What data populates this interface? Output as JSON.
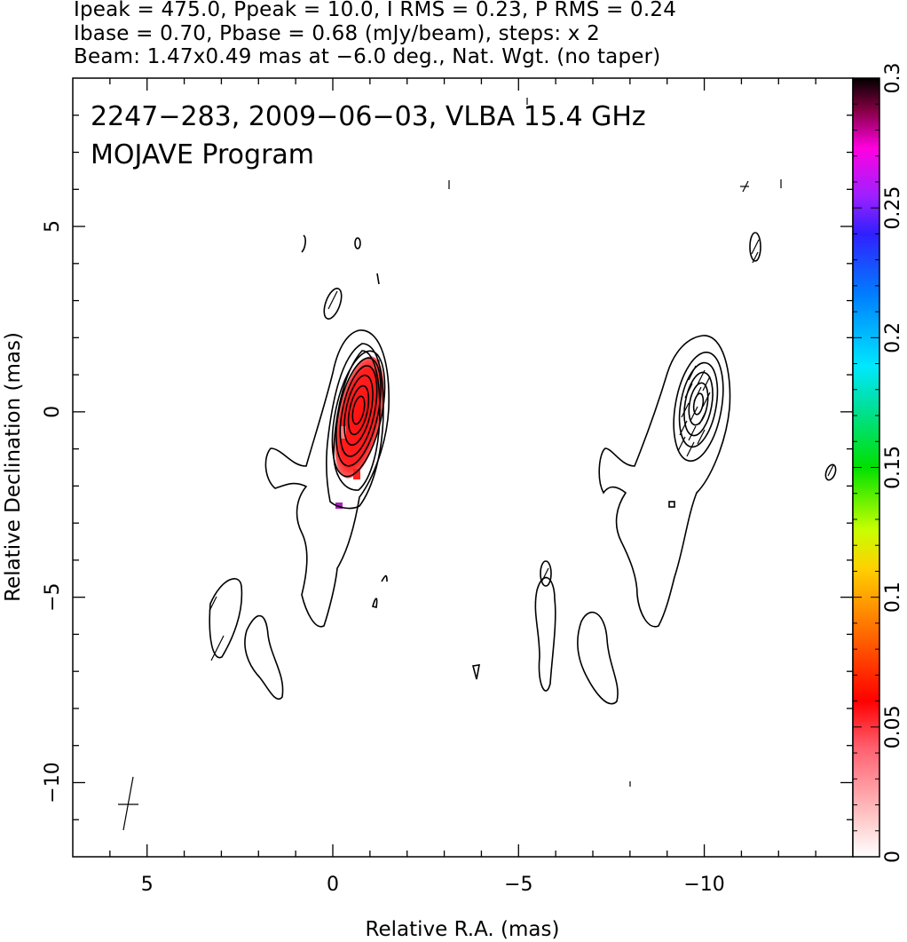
{
  "header": {
    "line1": "Ipeak = 475.0, Ppeak = 10.0, I RMS = 0.23, P RMS = 0.24",
    "line2": "Ibase = 0.70, Pbase = 0.68 (mJy/beam), steps: x 2",
    "line3": "Beam: 1.47x0.49 mas at −6.0 deg., Nat. Wgt. (no taper)"
  },
  "plot_text": {
    "line1": "2247−283, 2009−06−03, VLBA 15.4 GHz",
    "line2": "MOJAVE Program"
  },
  "chart_data": {
    "type": "heatmap",
    "xlabel": "Relative R.A. (mas)",
    "ylabel": "Relative Declination (mas)",
    "xlim": [
      7.0,
      -14.0
    ],
    "ylim": [
      -12.0,
      9.0
    ],
    "x_ticks": [
      5,
      0,
      -5,
      -10
    ],
    "x_tick_labels": [
      "5",
      "0",
      "−5",
      "−10"
    ],
    "y_ticks": [
      5,
      0,
      -5,
      -10
    ],
    "y_tick_labels": [
      "5",
      "0",
      "−5",
      "−10"
    ],
    "colorbar": {
      "range": [
        0,
        0.3
      ],
      "ticks": [
        0,
        0.05,
        0.1,
        0.15,
        0.2,
        0.25,
        0.3
      ],
      "tick_labels": [
        "0",
        "0.05",
        "0.1",
        "0.15",
        "0.2",
        "0.25",
        "0.3"
      ]
    },
    "core_center": [
      0,
      0
    ],
    "second_panel_center": [
      -9.3,
      0.3
    ],
    "contour_levels_mJy": [
      0.7,
      1.4,
      2.8,
      5.6,
      11.2,
      22.4,
      44.8,
      89.6,
      179.2,
      358.4
    ],
    "beam": {
      "major_mas": 1.47,
      "minor_mas": 0.49,
      "pa_deg": -6.0
    }
  }
}
